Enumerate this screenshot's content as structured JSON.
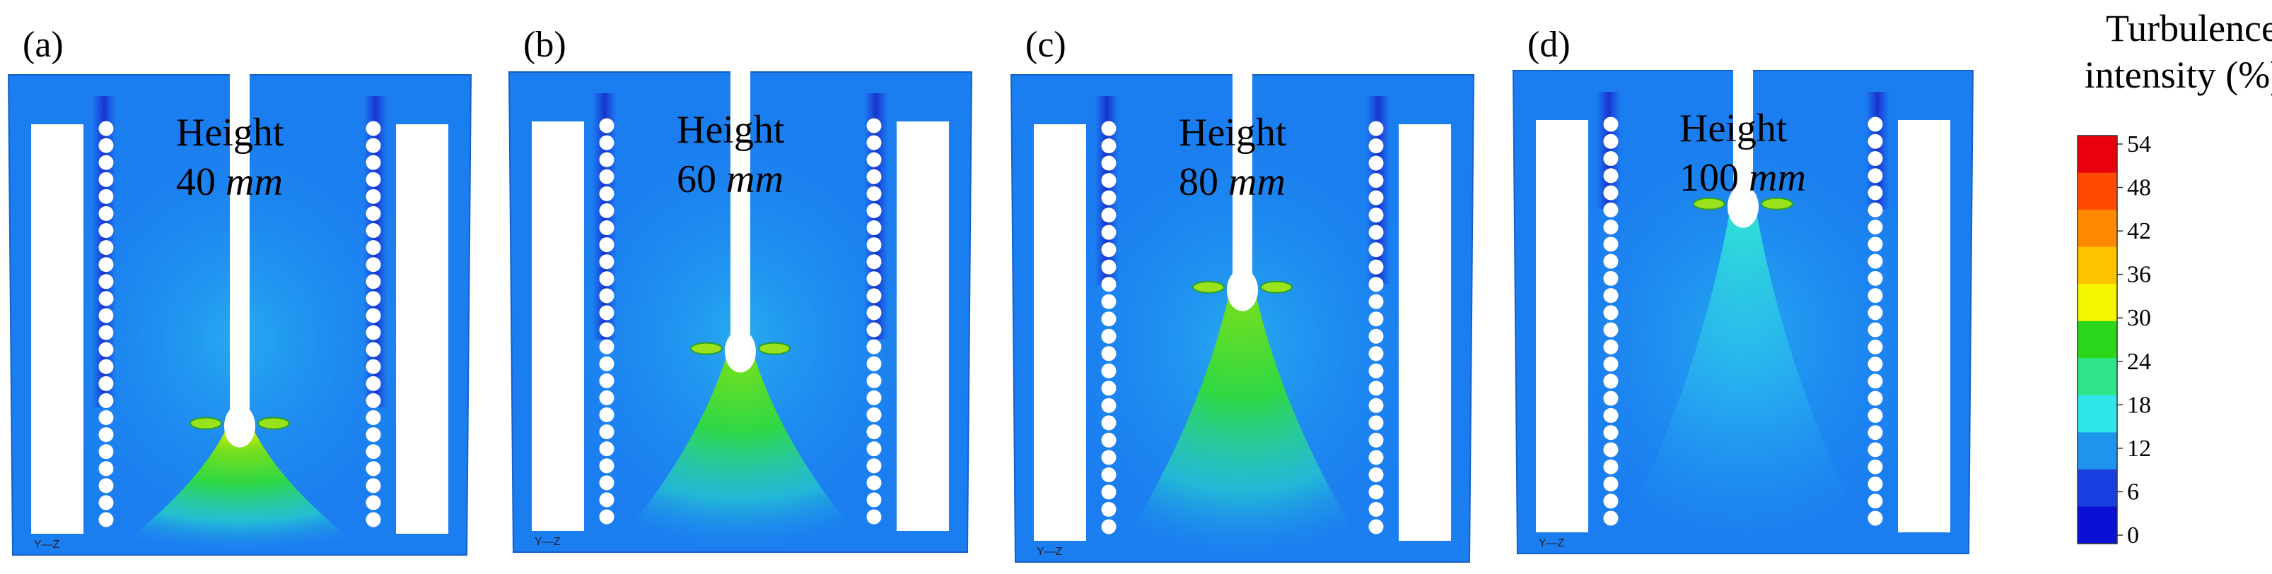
{
  "panels": [
    {
      "label": "(a)",
      "height_word": "Height",
      "height_value": "40",
      "height_unit": "mm",
      "axis_label": "Y—Z",
      "nozzle_level": 0.72
    },
    {
      "label": "(b)",
      "height_word": "Height",
      "height_value": "60",
      "height_unit": "mm",
      "axis_label": "Y—Z",
      "nozzle_level": 0.57
    },
    {
      "label": "(c)",
      "height_word": "Height",
      "height_value": "80",
      "height_unit": "mm",
      "axis_label": "Y—Z",
      "nozzle_level": 0.43
    },
    {
      "label": "(d)",
      "height_word": "Height",
      "height_value": "100",
      "height_unit": "mm",
      "axis_label": "Y—Z",
      "nozzle_level": 0.27
    }
  ],
  "legend": {
    "title_line1": "Turbulence",
    "title_line2": "intensity (%)",
    "ticks": [
      "54",
      "48",
      "42",
      "36",
      "30",
      "24",
      "18",
      "12",
      "6",
      "0"
    ],
    "colors": [
      "#e8000b",
      "#ff4a00",
      "#ff8a00",
      "#ffc400",
      "#f6f500",
      "#2bd61a",
      "#2fe58a",
      "#2fe6ea",
      "#1e95ec",
      "#1a3fe0",
      "#0a0fd4"
    ]
  }
}
